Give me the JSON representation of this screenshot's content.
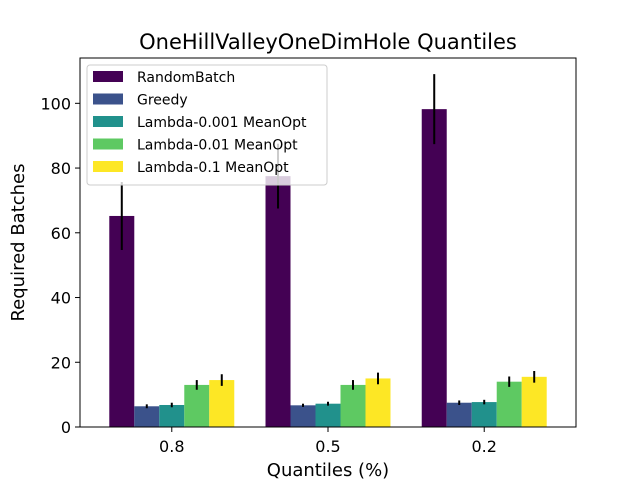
{
  "chart_data": {
    "type": "bar",
    "title": "OneHillValleyOneDimHole Quantiles",
    "xlabel": "Quantiles (%)",
    "ylabel": "Required Batches",
    "categories": [
      "0.8",
      "0.5",
      "0.2"
    ],
    "ylim": [
      0,
      114
    ],
    "yticks": [
      0,
      20,
      40,
      60,
      80,
      100
    ],
    "legend_position": "top-left",
    "series": [
      {
        "name": "RandomBatch",
        "color": "#440154",
        "values": [
          65.2,
          77.5,
          98.2
        ],
        "errors": [
          10.5,
          10.0,
          10.8
        ]
      },
      {
        "name": "Greedy",
        "color": "#3b528b",
        "values": [
          6.4,
          6.7,
          7.5
        ],
        "errors": [
          0.6,
          0.5,
          0.7
        ]
      },
      {
        "name": "Lambda-0.001 MeanOpt",
        "color": "#21918c",
        "values": [
          6.8,
          7.2,
          7.7
        ],
        "errors": [
          0.7,
          0.6,
          0.7
        ]
      },
      {
        "name": "Lambda-0.01 MeanOpt",
        "color": "#5ec962",
        "values": [
          13.0,
          13.0,
          14.0
        ],
        "errors": [
          1.5,
          1.5,
          1.6
        ]
      },
      {
        "name": "Lambda-0.1 MeanOpt",
        "color": "#fde725",
        "values": [
          14.5,
          15.0,
          15.5
        ],
        "errors": [
          1.8,
          1.8,
          1.8
        ]
      }
    ]
  }
}
